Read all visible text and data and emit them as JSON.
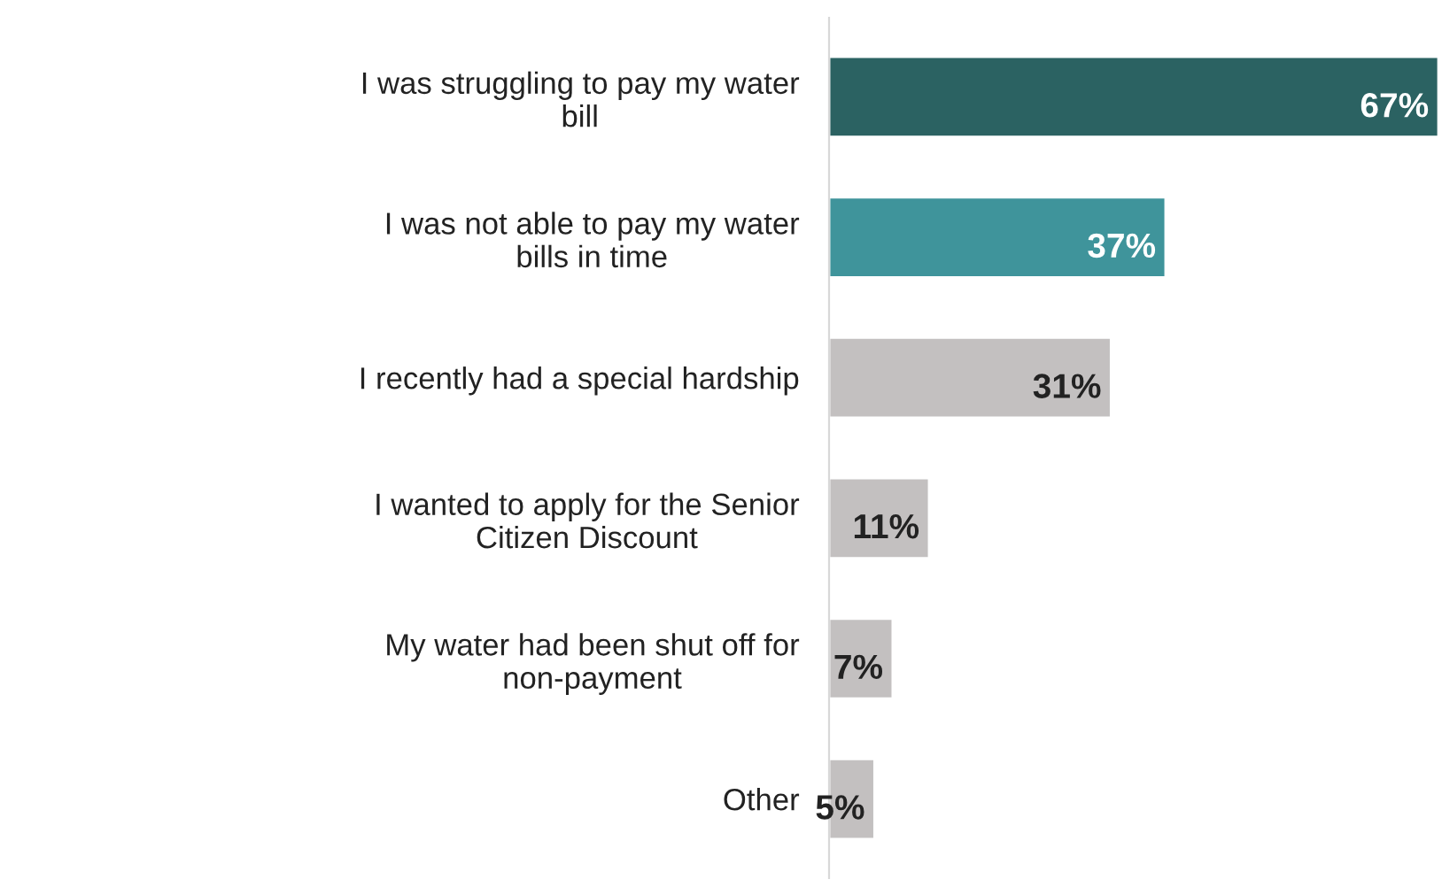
{
  "chart_data": {
    "type": "bar",
    "orientation": "horizontal",
    "categories": [
      "I was struggling to pay my water\nbill",
      "I was not able to pay my water\nbills in time",
      "I recently had a special hardship",
      "I wanted to apply for the Senior\nCitizen Discount",
      "My water had been shut off for\nnon-payment",
      "Other"
    ],
    "values": [
      67,
      37,
      31,
      11,
      7,
      5
    ],
    "value_labels": [
      "67%",
      "37%",
      "31%",
      "11%",
      "7%",
      "5%"
    ],
    "colors": [
      "#2b6262",
      "#3f949b",
      "#c3c0c0",
      "#c3c0c0",
      "#c3c0c0",
      "#c3c0c0"
    ],
    "grid": false,
    "legend": false
  }
}
